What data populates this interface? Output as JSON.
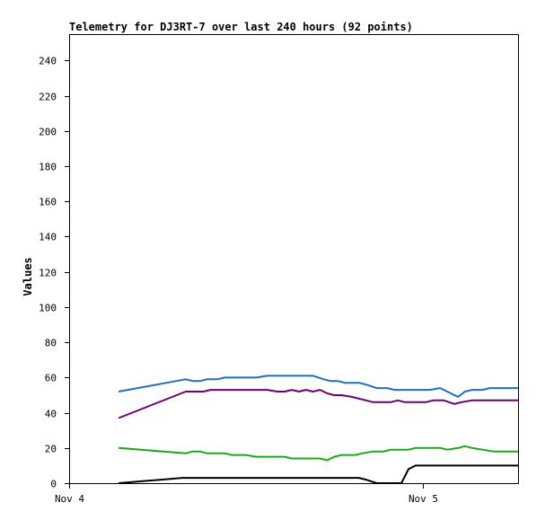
{
  "chart_data": {
    "type": "line",
    "title": "Telemetry for DJ3RT-7 over last 240 hours (92 points)",
    "ylabel": "Values",
    "xlabel": "",
    "ylim": [
      0,
      255
    ],
    "yticks": [
      0,
      20,
      40,
      60,
      80,
      100,
      120,
      140,
      160,
      180,
      200,
      220,
      240
    ],
    "xlim": [
      0,
      1.27
    ],
    "xticks": [
      {
        "value": 0,
        "label": "Nov 4"
      },
      {
        "value": 1,
        "label": "Nov 5"
      }
    ],
    "grid": false,
    "legend": "none",
    "series": [
      {
        "color": "#1f6fbf",
        "points": [
          [
            0.14,
            52
          ],
          [
            0.33,
            59
          ],
          [
            0.35,
            58
          ],
          [
            0.37,
            58
          ],
          [
            0.39,
            59
          ],
          [
            0.42,
            59
          ],
          [
            0.44,
            60
          ],
          [
            0.48,
            60
          ],
          [
            0.53,
            60
          ],
          [
            0.56,
            61
          ],
          [
            0.6,
            61
          ],
          [
            0.65,
            61
          ],
          [
            0.69,
            61
          ],
          [
            0.72,
            59
          ],
          [
            0.74,
            58
          ],
          [
            0.76,
            58
          ],
          [
            0.78,
            57
          ],
          [
            0.82,
            57
          ],
          [
            0.84,
            56
          ],
          [
            0.87,
            54
          ],
          [
            0.9,
            54
          ],
          [
            0.92,
            53
          ],
          [
            0.96,
            53
          ],
          [
            1.0,
            53
          ],
          [
            1.02,
            53
          ],
          [
            1.05,
            54
          ],
          [
            1.08,
            51
          ],
          [
            1.1,
            49
          ],
          [
            1.12,
            52
          ],
          [
            1.14,
            53
          ],
          [
            1.17,
            53
          ],
          [
            1.19,
            54
          ],
          [
            1.27,
            54
          ]
        ]
      },
      {
        "color": "#6f006f",
        "points": [
          [
            0.14,
            37
          ],
          [
            0.33,
            52
          ],
          [
            0.35,
            52
          ],
          [
            0.38,
            52
          ],
          [
            0.4,
            53
          ],
          [
            0.44,
            53
          ],
          [
            0.48,
            53
          ],
          [
            0.52,
            53
          ],
          [
            0.56,
            53
          ],
          [
            0.59,
            52
          ],
          [
            0.61,
            52
          ],
          [
            0.63,
            53
          ],
          [
            0.65,
            52
          ],
          [
            0.67,
            53
          ],
          [
            0.69,
            52
          ],
          [
            0.71,
            53
          ],
          [
            0.73,
            51
          ],
          [
            0.75,
            50
          ],
          [
            0.77,
            50
          ],
          [
            0.8,
            49
          ],
          [
            0.84,
            47
          ],
          [
            0.86,
            46
          ],
          [
            0.89,
            46
          ],
          [
            0.91,
            46
          ],
          [
            0.93,
            47
          ],
          [
            0.95,
            46
          ],
          [
            0.98,
            46
          ],
          [
            1.01,
            46
          ],
          [
            1.03,
            47
          ],
          [
            1.06,
            47
          ],
          [
            1.09,
            45
          ],
          [
            1.11,
            46
          ],
          [
            1.14,
            47
          ],
          [
            1.17,
            47
          ],
          [
            1.27,
            47
          ]
        ]
      },
      {
        "color": "#1aa81a",
        "points": [
          [
            0.14,
            20
          ],
          [
            0.33,
            17
          ],
          [
            0.35,
            18
          ],
          [
            0.37,
            18
          ],
          [
            0.39,
            17
          ],
          [
            0.44,
            17
          ],
          [
            0.46,
            16
          ],
          [
            0.5,
            16
          ],
          [
            0.53,
            15
          ],
          [
            0.57,
            15
          ],
          [
            0.61,
            15
          ],
          [
            0.63,
            14
          ],
          [
            0.67,
            14
          ],
          [
            0.71,
            14
          ],
          [
            0.73,
            13
          ],
          [
            0.75,
            15
          ],
          [
            0.77,
            16
          ],
          [
            0.81,
            16
          ],
          [
            0.83,
            17
          ],
          [
            0.86,
            18
          ],
          [
            0.89,
            18
          ],
          [
            0.91,
            19
          ],
          [
            0.96,
            19
          ],
          [
            0.98,
            20
          ],
          [
            1.02,
            20
          ],
          [
            1.05,
            20
          ],
          [
            1.07,
            19
          ],
          [
            1.1,
            20
          ],
          [
            1.12,
            21
          ],
          [
            1.14,
            20
          ],
          [
            1.17,
            19
          ],
          [
            1.2,
            18
          ],
          [
            1.27,
            18
          ]
        ]
      },
      {
        "color": "#000000",
        "points": [
          [
            0.14,
            0
          ],
          [
            0.2,
            1
          ],
          [
            0.26,
            2
          ],
          [
            0.32,
            3
          ],
          [
            0.34,
            3
          ],
          [
            0.4,
            3
          ],
          [
            0.47,
            3
          ],
          [
            0.54,
            3
          ],
          [
            0.61,
            3
          ],
          [
            0.67,
            3
          ],
          [
            0.73,
            3
          ],
          [
            0.79,
            3
          ],
          [
            0.82,
            3
          ],
          [
            0.84,
            2
          ],
          [
            0.87,
            0
          ],
          [
            0.9,
            0
          ],
          [
            0.94,
            0
          ],
          [
            0.96,
            8
          ],
          [
            0.98,
            10
          ],
          [
            1.0,
            10
          ],
          [
            1.05,
            10
          ],
          [
            1.1,
            10
          ],
          [
            1.15,
            10
          ],
          [
            1.2,
            10
          ],
          [
            1.27,
            10
          ]
        ]
      }
    ]
  }
}
